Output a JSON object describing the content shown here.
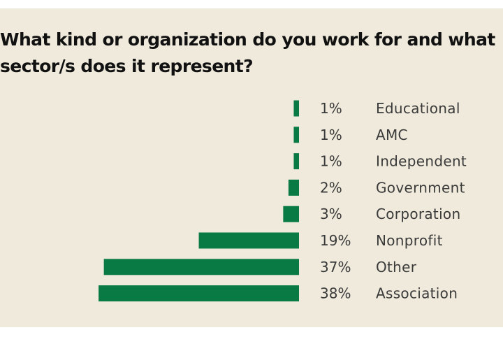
{
  "chart_data": {
    "type": "bar",
    "orientation": "horizontal",
    "title": "What kind or organization do you work for and what sector/s does it represent?",
    "categories": [
      "Educational",
      "AMC",
      "Independent",
      "Government",
      "Corporation",
      "Nonprofit",
      "Other",
      "Association"
    ],
    "values": [
      1,
      1,
      1,
      2,
      3,
      19,
      37,
      38
    ],
    "value_labels": [
      "1%",
      "1%",
      "1%",
      "2%",
      "3%",
      "19%",
      "37%",
      "38%"
    ],
    "unit": "%",
    "bar_color": "#0a7a45",
    "grid": false,
    "legend": "none"
  },
  "colors": {
    "background": "#efeadb",
    "bar": "#0a7a45",
    "title": "#111111",
    "label": "#3a3a3a"
  }
}
